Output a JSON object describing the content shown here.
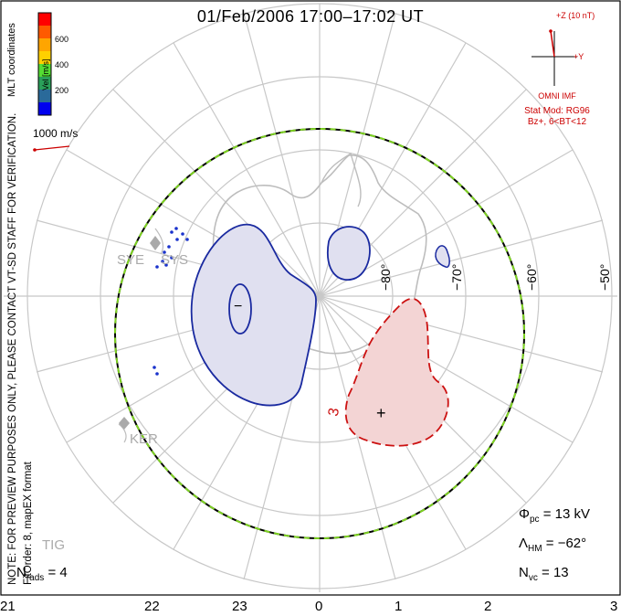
{
  "title": "01/Feb/2006 17:00–17:02 UT",
  "note_line1": "NOTE: FOR PREVIEW PURPOSES ONLY, PLEASE CONTACT VT-SD STAFF FOR VERIFICATION.",
  "note_line2": "FitOrder: 8, mapEX format",
  "coords": "MLT coordinates",
  "colorbar": {
    "unit": "Vel [m/s]",
    "ticks": [
      "600",
      "400",
      "200"
    ],
    "colors": [
      "#ff0000",
      "#ff5a00",
      "#ffa500",
      "#ffd000",
      "#55dd33",
      "#2aa05a",
      "#2a6a9a",
      "#0000ee"
    ]
  },
  "scale_vector": "1000 m/s",
  "imf": {
    "z_label": "+Z (10 nT)",
    "y_label": "+Y",
    "omni": "OMNI IMF",
    "stat_mod": "Stat Mod: RG96",
    "bz": "Bz+, 6<BT<12"
  },
  "stats": {
    "phi_symbol": "Φ",
    "phi_sub": "pc",
    "phi_value": "= 13 kV",
    "lambda_symbol": "Λ",
    "lambda_sub": "HM",
    "lambda_value": "= −62°",
    "nvc_symbol": "N",
    "nvc_sub": "vc",
    "nvc_value": "= 13",
    "nrads_symbol": "N",
    "nrads_sub": "rads",
    "nrads_value": "= 4"
  },
  "mlt_labels": [
    "21",
    "22",
    "23",
    "0",
    "1",
    "2",
    "3"
  ],
  "lat_labels": [
    "−80°",
    "−70°",
    "−60°",
    "−50°"
  ],
  "stations": [
    "SYE",
    "SYS",
    "KER",
    "TIG"
  ],
  "contour_labels": {
    "minus": "−",
    "plus": "+",
    "three": "3"
  },
  "colors": {
    "negative_fill": "#e0e0f0",
    "negative_line": "#1a2aa0",
    "positive_fill": "#f3d4d4",
    "positive_line": "#cc1111",
    "hm_boundary": "#7ed321"
  }
}
